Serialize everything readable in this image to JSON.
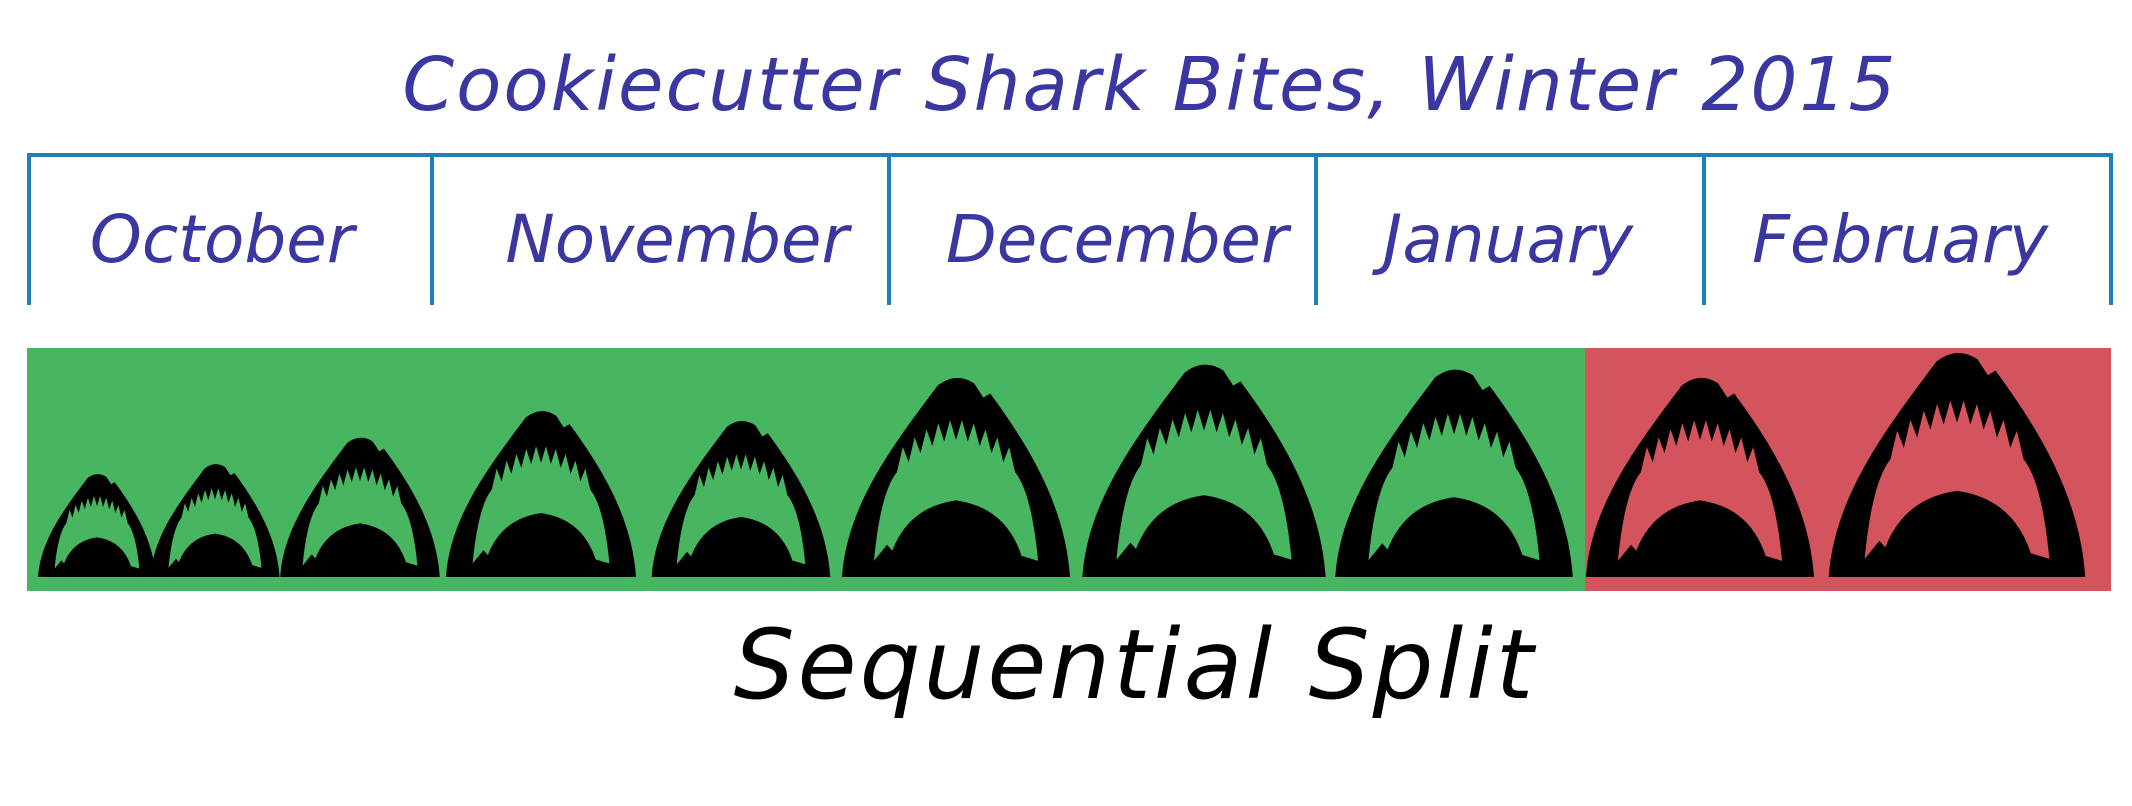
{
  "title": "Cookiecutter Shark Bites, Winter 2015",
  "months": [
    "October",
    "November",
    "December",
    "January",
    "February"
  ],
  "caption": "Sequential Split",
  "colors": {
    "ink": "#3a37a0",
    "rule": "#1f7fb8",
    "train_segment": "#48b560",
    "test_segment": "#d4545e",
    "shark": "#000000",
    "caption_ink": "#000000"
  },
  "segments": [
    {
      "name": "green",
      "color_key": "train_segment",
      "bites": 8
    },
    {
      "name": "red",
      "color_key": "test_segment",
      "bites": 2
    }
  ],
  "bites": [
    {
      "icon": "shark-jaw-icon",
      "segment": "green",
      "relative_size": 0.62
    },
    {
      "icon": "shark-jaw-icon",
      "segment": "green",
      "relative_size": 0.68
    },
    {
      "icon": "shark-jaw-icon",
      "segment": "green",
      "relative_size": 0.84
    },
    {
      "icon": "shark-jaw-icon",
      "segment": "green",
      "relative_size": 1.0
    },
    {
      "icon": "shark-jaw-icon",
      "segment": "green",
      "relative_size": 0.94
    },
    {
      "icon": "shark-jaw-icon",
      "segment": "green",
      "relative_size": 1.2
    },
    {
      "icon": "shark-jaw-icon",
      "segment": "green",
      "relative_size": 1.28
    },
    {
      "icon": "shark-jaw-icon",
      "segment": "green",
      "relative_size": 1.25
    },
    {
      "icon": "shark-jaw-icon",
      "segment": "red",
      "relative_size": 1.2
    },
    {
      "icon": "shark-jaw-icon",
      "segment": "red",
      "relative_size": 1.35
    }
  ]
}
